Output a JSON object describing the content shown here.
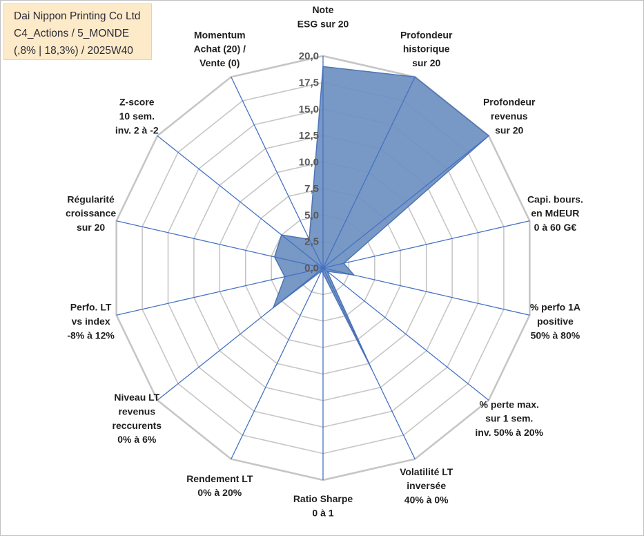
{
  "title_box": {
    "line1": "Dai Nippon Printing Co Ltd",
    "line2": "C4_Actions / 5_MONDE",
    "line3": "(,8% | 18,3%) / 2025W40"
  },
  "colors": {
    "grid": "#c6c6c6",
    "spoke": "#4472c4",
    "fill": "#6d8fc0",
    "fill_stroke": "#4f74b3"
  },
  "chart_data": {
    "type": "radar",
    "rmin": 0,
    "rmax": 20,
    "step": 2.5,
    "tick_labels": [
      "0,0",
      "2,5",
      "5,0",
      "7,5",
      "10,0",
      "12,5",
      "15,0",
      "17,5",
      "20,0"
    ],
    "categories": [
      [
        "Note",
        "ESG sur 20"
      ],
      [
        "Profondeur",
        "historique",
        "sur 20"
      ],
      [
        "Profondeur",
        "revenus",
        "sur 20"
      ],
      [
        "Capi. bours.",
        "en MdEUR",
        "0 à 60 G€"
      ],
      [
        "% perfo 1A",
        "positive",
        "50% à 80%"
      ],
      [
        "% perte max.",
        "sur 1 sem.",
        "inv. 50% à 20%"
      ],
      [
        "Volatilité LT",
        "inversée",
        "40% à 0%"
      ],
      [
        "Ratio Sharpe",
        "0 à 1"
      ],
      [
        "Rendement LT",
        "0% à 20%"
      ],
      [
        "Niveau LT",
        "revenus",
        "reccurents",
        "0% à 6%"
      ],
      [
        "Perfo. LT",
        "vs index",
        "-8% à 12%"
      ],
      [
        "Régularité",
        "croissance",
        "sur 20"
      ],
      [
        "Z-score",
        "10 sem.",
        "inv. 2 à -2"
      ],
      [
        "Momentum",
        "Achat (20) /",
        "Vente (0)"
      ]
    ],
    "series": [
      {
        "values": [
          19.0,
          20.0,
          20.0,
          2.0,
          3.0,
          0.5,
          10.5,
          0.5,
          0.3,
          6.0,
          3.7,
          4.7,
          5.0,
          3.0
        ]
      }
    ]
  }
}
